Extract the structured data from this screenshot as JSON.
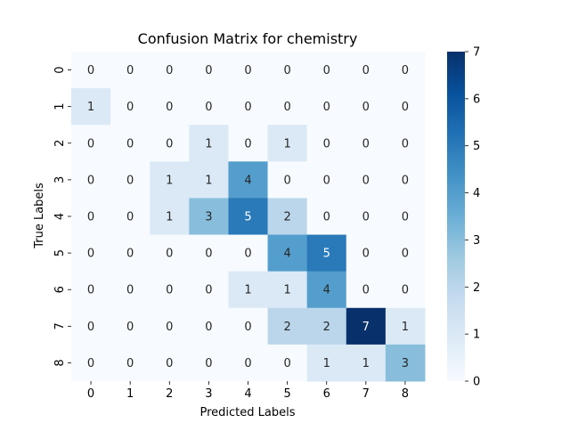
{
  "chart_data": {
    "type": "heatmap",
    "title": "Confusion Matrix for chemistry",
    "xlabel": "Predicted Labels",
    "ylabel": "True Labels",
    "x_categories": [
      "0",
      "1",
      "2",
      "3",
      "4",
      "5",
      "6",
      "7",
      "8"
    ],
    "y_categories": [
      "0",
      "1",
      "2",
      "3",
      "4",
      "5",
      "6",
      "7",
      "8"
    ],
    "values": [
      [
        0,
        0,
        0,
        0,
        0,
        0,
        0,
        0,
        0
      ],
      [
        1,
        0,
        0,
        0,
        0,
        0,
        0,
        0,
        0
      ],
      [
        0,
        0,
        0,
        1,
        0,
        1,
        0,
        0,
        0
      ],
      [
        0,
        0,
        1,
        1,
        4,
        0,
        0,
        0,
        0
      ],
      [
        0,
        0,
        1,
        3,
        5,
        2,
        0,
        0,
        0
      ],
      [
        0,
        0,
        0,
        0,
        0,
        4,
        5,
        0,
        0
      ],
      [
        0,
        0,
        0,
        0,
        1,
        1,
        4,
        0,
        0
      ],
      [
        0,
        0,
        0,
        0,
        0,
        2,
        2,
        7,
        1
      ],
      [
        0,
        0,
        0,
        0,
        0,
        0,
        1,
        1,
        3
      ]
    ],
    "colorscale": "Blues",
    "colorbar": {
      "range": [
        0,
        7
      ],
      "ticks": [
        "0",
        "1",
        "2",
        "3",
        "4",
        "5",
        "6",
        "7"
      ]
    },
    "annotations": true,
    "grid": false
  }
}
